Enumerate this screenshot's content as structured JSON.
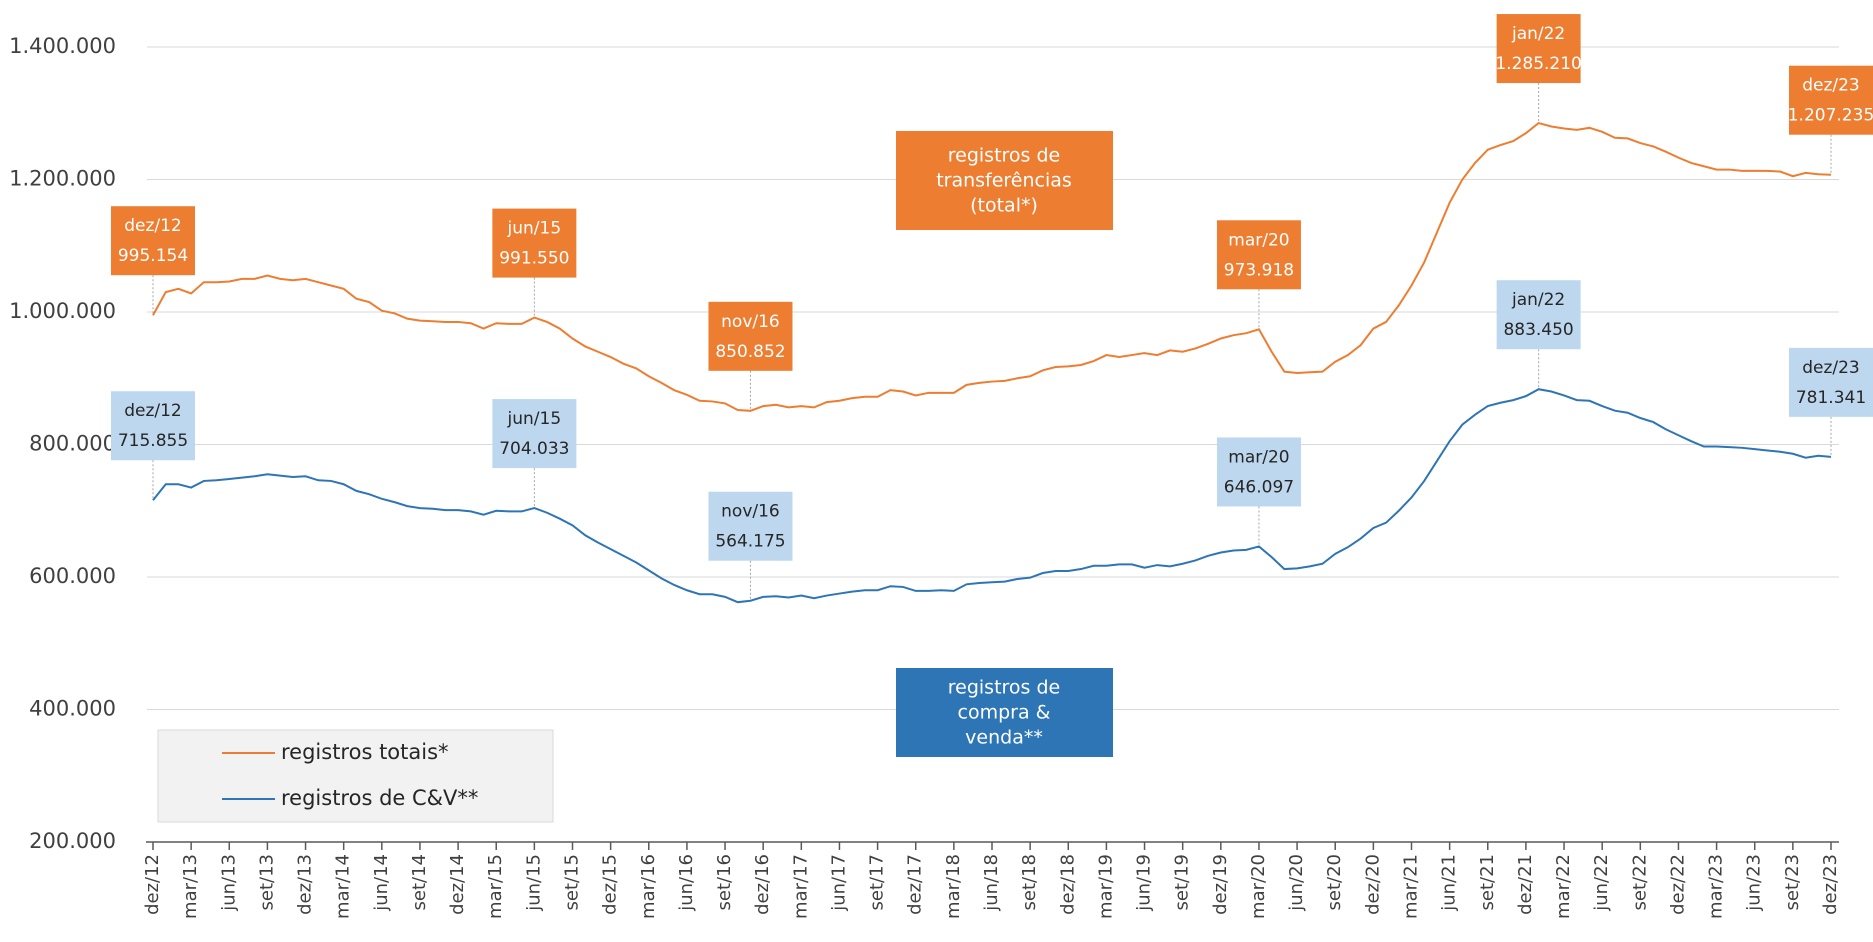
{
  "chart_data": {
    "type": "line",
    "categories": [
      "dez/12",
      null,
      null,
      "mar/13",
      null,
      null,
      "jun/13",
      null,
      null,
      "set/13",
      null,
      null,
      "dez/13",
      null,
      null,
      "mar/14",
      null,
      null,
      "jun/14",
      null,
      null,
      "set/14",
      null,
      null,
      "dez/14",
      null,
      null,
      "mar/15",
      null,
      null,
      "jun/15",
      null,
      null,
      "set/15",
      null,
      null,
      "dez/15",
      null,
      null,
      "mar/16",
      null,
      null,
      "jun/16",
      null,
      null,
      "set/16",
      null,
      null,
      "dez/16",
      null,
      null,
      "mar/17",
      null,
      null,
      "jun/17",
      null,
      null,
      "set/17",
      null,
      null,
      "dez/17",
      null,
      null,
      "mar/18",
      null,
      null,
      "jun/18",
      null,
      null,
      "set/18",
      null,
      null,
      "dez/18",
      null,
      null,
      "mar/19",
      null,
      null,
      "jun/19",
      null,
      null,
      "set/19",
      null,
      null,
      "dez/19",
      null,
      null,
      "mar/20",
      null,
      null,
      "jun/20",
      null,
      null,
      "set/20",
      null,
      null,
      "dez/20",
      null,
      null,
      "mar/21",
      null,
      null,
      "jun/21",
      null,
      null,
      "set/21",
      null,
      null,
      "dez/21",
      null,
      null,
      "mar/22",
      null,
      null,
      "jun/22",
      null,
      null,
      "set/22",
      null,
      null,
      "dez/22",
      null,
      null,
      "mar/23",
      null,
      null,
      "jun/23",
      null,
      null,
      "set/23",
      null,
      null,
      "dez/23"
    ],
    "series": [
      {
        "name": "registros totais*",
        "color": "#ED7D31",
        "box": "registros de transferências (total*)",
        "values": [
          995154,
          1030000,
          1035000,
          1028000,
          1045000,
          1045000,
          1046000,
          1050000,
          1050000,
          1055000,
          1050000,
          1048000,
          1050000,
          1045000,
          1040000,
          1035000,
          1020000,
          1015000,
          1002000,
          998000,
          990000,
          987000,
          986000,
          985000,
          985000,
          983000,
          975000,
          983000,
          982000,
          982000,
          991550,
          985000,
          975000,
          960000,
          948000,
          940000,
          932000,
          922000,
          915000,
          903000,
          893000,
          882000,
          875000,
          866000,
          865000,
          862000,
          852000,
          850852,
          858000,
          860000,
          856000,
          858000,
          856000,
          864000,
          866000,
          870000,
          872000,
          872000,
          882000,
          880000,
          874000,
          878000,
          878000,
          878000,
          890000,
          893000,
          895000,
          896000,
          900000,
          903000,
          912000,
          917000,
          918000,
          920000,
          926000,
          935000,
          932000,
          935000,
          938000,
          935000,
          942000,
          940000,
          945000,
          952000,
          960000,
          965000,
          968000,
          973918,
          940000,
          910000,
          908000,
          909000,
          910000,
          925000,
          935000,
          950000,
          975000,
          985000,
          1010000,
          1040000,
          1075000,
          1120000,
          1165000,
          1200000,
          1225000,
          1245000,
          1252000,
          1258000,
          1270000,
          1285210,
          1280000,
          1277000,
          1275000,
          1278000,
          1272000,
          1263000,
          1262000,
          1255000,
          1250000,
          1242000,
          1233000,
          1225000,
          1220000,
          1215000,
          1215000,
          1213000,
          1213000,
          1213000,
          1212000,
          1205000,
          1210000,
          1208000,
          1207235
        ],
        "annotations": [
          {
            "label": "dez/12",
            "value": 995154,
            "value_label": "995.154"
          },
          {
            "label": "jun/15",
            "value": 991550,
            "value_label": "991.550"
          },
          {
            "label": "nov/16",
            "value": 850852,
            "value_label": "850.852"
          },
          {
            "label": "mar/20",
            "value": 973918,
            "value_label": "973.918"
          },
          {
            "label": "jan/22",
            "value": 1285210,
            "value_label": "1.285.210"
          },
          {
            "label": "dez/23",
            "value": 1207235,
            "value_label": "1.207.235"
          }
        ]
      },
      {
        "name": "registros de C&V**",
        "color": "#2E75B6",
        "box": "registros de compra & venda**",
        "values": [
          715855,
          740000,
          740000,
          735000,
          745000,
          746000,
          748000,
          750000,
          752000,
          755000,
          753000,
          751000,
          752000,
          746000,
          745000,
          740000,
          730000,
          725000,
          718000,
          713000,
          707000,
          704000,
          703000,
          701000,
          701000,
          699000,
          694000,
          700000,
          699000,
          699000,
          704033,
          697000,
          688000,
          678000,
          663000,
          652000,
          642000,
          632000,
          622000,
          610000,
          598000,
          588000,
          580000,
          574000,
          574000,
          570000,
          562000,
          564175,
          570000,
          571000,
          569000,
          572000,
          568000,
          572000,
          575000,
          578000,
          580000,
          580000,
          586000,
          585000,
          579000,
          579000,
          580000,
          579000,
          589000,
          591000,
          592000,
          593000,
          597000,
          599000,
          606000,
          609000,
          609000,
          612000,
          617000,
          617000,
          619000,
          619000,
          614000,
          618000,
          616000,
          620000,
          625000,
          632000,
          637000,
          640000,
          641000,
          646097,
          630000,
          612000,
          613000,
          616000,
          620000,
          635000,
          645000,
          658000,
          674000,
          682000,
          700000,
          720000,
          745000,
          775000,
          805000,
          830000,
          845000,
          858000,
          863000,
          867000,
          873000,
          883450,
          880000,
          874000,
          867000,
          866000,
          858000,
          851000,
          848000,
          840000,
          834000,
          823000,
          814000,
          805000,
          797000,
          797000,
          796000,
          795000,
          793000,
          791000,
          789000,
          786000,
          780000,
          783000,
          781341
        ],
        "annotations": [
          {
            "label": "dez/12",
            "value": 715855,
            "value_label": "715.855"
          },
          {
            "label": "jun/15",
            "value": 704033,
            "value_label": "704.033"
          },
          {
            "label": "nov/16",
            "value": 564175,
            "value_label": "564.175"
          },
          {
            "label": "mar/20",
            "value": 646097,
            "value_label": "646.097"
          },
          {
            "label": "jan/22",
            "value": 883450,
            "value_label": "883.450"
          },
          {
            "label": "dez/23",
            "value": 781341,
            "value_label": "781.341"
          }
        ]
      }
    ],
    "ylim": [
      200000,
      1400000
    ],
    "yticks": [
      {
        "value": 200000,
        "label": "200.000"
      },
      {
        "value": 400000,
        "label": "400.000"
      },
      {
        "value": 600000,
        "label": "600.000"
      },
      {
        "value": 800000,
        "label": "800.000"
      },
      {
        "value": 1000000,
        "label": "1.000.000"
      },
      {
        "value": 1200000,
        "label": "1.200.000"
      },
      {
        "value": 1400000,
        "label": "1.400.000"
      }
    ],
    "grid": true
  }
}
